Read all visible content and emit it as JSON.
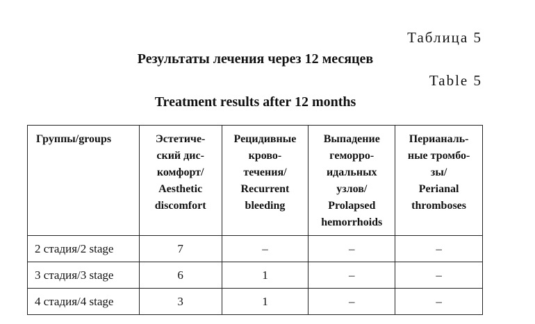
{
  "labels": {
    "table_ru": "Таблица 5",
    "title_ru": "Результаты лечения через 12 месяцев",
    "table_en": "Table 5",
    "title_en": "Treatment results after 12 months"
  },
  "table": {
    "headers": [
      [
        "Группы/groups"
      ],
      [
        "Эстетиче-",
        "ский дис-",
        "комфорт/",
        "Aesthetic",
        "discomfort"
      ],
      [
        "Рецидивные",
        "крово-",
        "течения/",
        "Recurrent",
        "bleeding"
      ],
      [
        "Выпадение",
        "геморро-",
        "идальных",
        "узлов/",
        "Prolapsed",
        "hemorrhoids"
      ],
      [
        "Перианаль-",
        "ные тромбо-",
        "зы/",
        "Perianal",
        "thromboses"
      ]
    ],
    "rows": [
      [
        "2 стадия/2 stage",
        "7",
        "–",
        "–",
        "–"
      ],
      [
        "3 стадия/3 stage",
        "6",
        "1",
        "–",
        "–"
      ],
      [
        "4 стадия/4 stage",
        "3",
        "1",
        "–",
        "–"
      ]
    ]
  }
}
